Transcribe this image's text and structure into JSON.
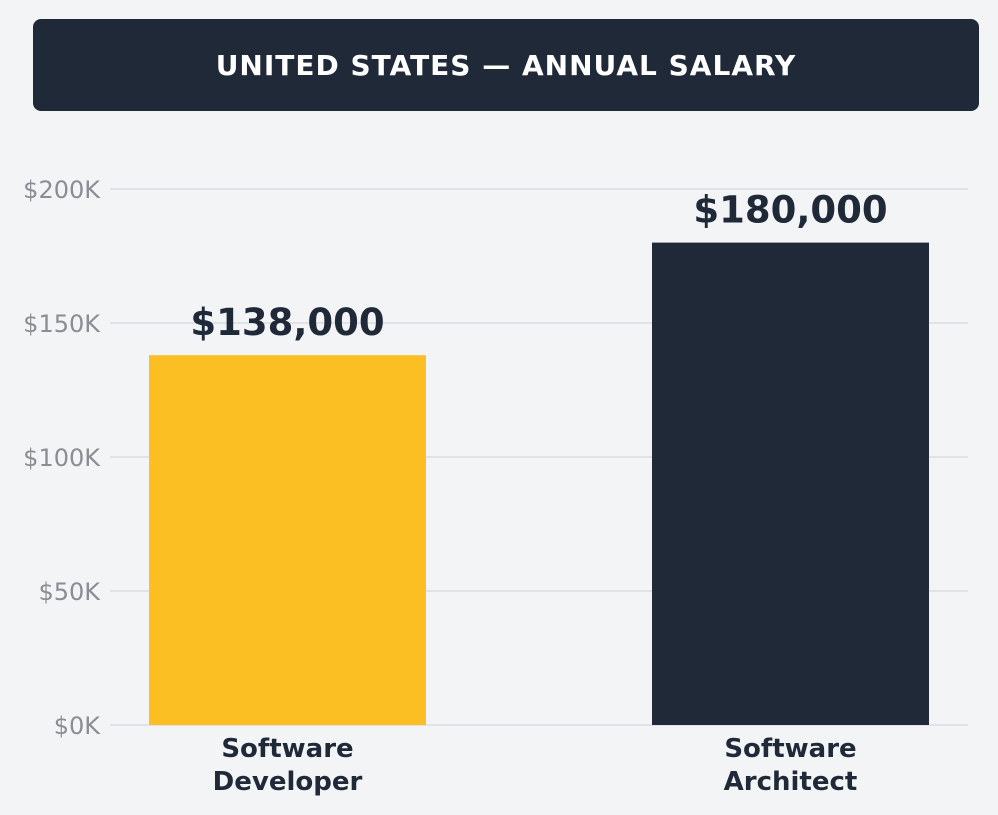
{
  "header": {
    "title": "UNITED STATES — ANNUAL SALARY"
  },
  "colors": {
    "header_bg": "#1f2937",
    "header_text": "#ffffff",
    "background": "#f3f4f6",
    "grid": "#d9dbdf",
    "tick_text": "#8a8d93",
    "label_text": "#1f2937"
  },
  "chart_data": {
    "type": "bar",
    "categories": [
      [
        "Software",
        "Developer"
      ],
      [
        "Software",
        "Architect"
      ]
    ],
    "values": [
      138000,
      180000
    ],
    "value_labels": [
      "$138,000",
      "$180,000"
    ],
    "bar_colors": [
      "#fbbf24",
      "#1f2937"
    ],
    "ylim": [
      0,
      200000
    ],
    "yticks": [
      0,
      50000,
      100000,
      150000,
      200000
    ],
    "ytick_labels": [
      "$0K",
      "$50K",
      "$100K",
      "$150K",
      "$200K"
    ],
    "grid": true,
    "xlabel": "",
    "ylabel": ""
  }
}
